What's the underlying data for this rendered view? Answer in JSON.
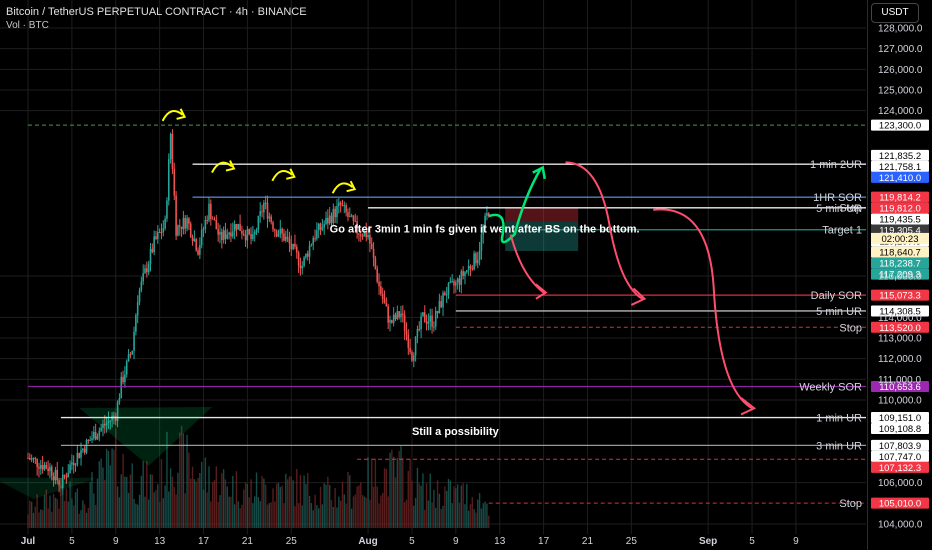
{
  "header": {
    "title": "Bitcoin / TetherUS PERPETUAL CONTRACT · 4h · BINANCE",
    "volume_label": "Vol · BTC",
    "currency": "USDT"
  },
  "chart_data": {
    "type": "candlestick",
    "ylim": [
      104000,
      128000
    ],
    "y_ticks": [
      {
        "v": 128000,
        "label": "128,000.0"
      },
      {
        "v": 127000,
        "label": "127,000.0"
      },
      {
        "v": 126000,
        "label": "126,000.0"
      },
      {
        "v": 125000,
        "label": "125,000.0"
      },
      {
        "v": 124000,
        "label": "124,000.0"
      },
      {
        "v": 116000,
        "label": "116,000.0"
      },
      {
        "v": 114000,
        "label": "114,000.0"
      },
      {
        "v": 113000,
        "label": "113,000.0"
      },
      {
        "v": 112000,
        "label": "112,000.0"
      },
      {
        "v": 111000,
        "label": "111,000.0"
      },
      {
        "v": 110000,
        "label": "110,000.0"
      },
      {
        "v": 106000,
        "label": "106,000.0"
      },
      {
        "v": 104000,
        "label": "104,000.0"
      }
    ],
    "x_ticks": [
      "Jul",
      "5",
      "9",
      "13",
      "17",
      "21",
      "25",
      "Aug",
      "5",
      "9",
      "13",
      "17",
      "21",
      "25",
      "Sep",
      "5",
      "9"
    ],
    "x_tick_days": [
      0,
      4,
      8,
      12,
      16,
      20,
      24,
      31,
      35,
      39,
      43,
      47,
      51,
      55,
      62,
      66,
      70
    ],
    "price_path": [
      [
        0,
        107200
      ],
      [
        2,
        106700
      ],
      [
        3,
        105900
      ],
      [
        4,
        107000
      ],
      [
        6,
        108300
      ],
      [
        8,
        109300
      ],
      [
        8.5,
        110800
      ],
      [
        9.5,
        112500
      ],
      [
        10,
        115000
      ],
      [
        11.5,
        117600
      ],
      [
        12.5,
        118500
      ],
      [
        13,
        122900
      ],
      [
        13.5,
        118300
      ],
      [
        14.5,
        118700
      ],
      [
        15.5,
        117300
      ],
      [
        16.5,
        119300
      ],
      [
        17.5,
        117800
      ],
      [
        19,
        118500
      ],
      [
        20.5,
        117700
      ],
      [
        21.5,
        119500
      ],
      [
        22.5,
        118300
      ],
      [
        23.5,
        117800
      ],
      [
        25,
        116500
      ],
      [
        26,
        117900
      ],
      [
        27,
        118500
      ],
      [
        28.5,
        119400
      ],
      [
        30,
        118200
      ],
      [
        31,
        118000
      ],
      [
        32,
        115500
      ],
      [
        33,
        113700
      ],
      [
        34,
        114200
      ],
      [
        35,
        112200
      ],
      [
        36,
        114000
      ],
      [
        37,
        113800
      ],
      [
        38,
        115200
      ],
      [
        39,
        115600
      ],
      [
        40,
        116300
      ],
      [
        41,
        117000
      ],
      [
        41.5,
        118300
      ],
      [
        42,
        119200
      ]
    ],
    "volume_path": [
      [
        0,
        0.2
      ],
      [
        3,
        0.35
      ],
      [
        5,
        0.3
      ],
      [
        8,
        0.7
      ],
      [
        10,
        0.5
      ],
      [
        12,
        0.45
      ],
      [
        13,
        0.8
      ],
      [
        16,
        0.55
      ],
      [
        20,
        0.4
      ],
      [
        24,
        0.45
      ],
      [
        28,
        0.35
      ],
      [
        32,
        0.55
      ],
      [
        34,
        0.6
      ],
      [
        36,
        0.4
      ],
      [
        40,
        0.35
      ],
      [
        42,
        0.25
      ]
    ],
    "horizontal_levels": [
      {
        "price": 123300,
        "color": "#4caf50",
        "style": "dashed",
        "label": "",
        "tag": "123,300.0"
      },
      {
        "price": 121835.2,
        "color": "#000000",
        "style": "none",
        "label": "",
        "tag": "121,835.2"
      },
      {
        "price": 121758.1,
        "color": "#000000",
        "style": "none",
        "label": "",
        "tag": "121,758.1"
      },
      {
        "price": 121410,
        "color": "#ffffff",
        "style": "solid",
        "label": "1 min 2UR",
        "tag": "121,410.0",
        "tag_bg": "#2962ff"
      },
      {
        "price": 119814.2,
        "color": "#5b8fd6",
        "style": "solid",
        "label": "1HR SOR",
        "tag": "119,814.2",
        "tag_bg": "#f23645"
      },
      {
        "price": 119812,
        "color": "#000000",
        "style": "none",
        "label": "",
        "tag": "119,812.0",
        "tag_bg": "#f23645"
      },
      {
        "price": 119435.5,
        "color": "#000000",
        "style": "none",
        "label": "",
        "tag": "119,435.5"
      },
      {
        "price": 119305.4,
        "color": "#787b86",
        "style": "solid",
        "label": "Stop",
        "tag": "119,305.4",
        "tag_bg": "#3a3a3a"
      },
      {
        "price": 119297.6,
        "color": "#ffffff",
        "style": "solid",
        "label": "5 min UR",
        "tag": "119,297.6"
      },
      {
        "price": 118640.7,
        "color": "#ffffff",
        "style": "none",
        "label": "",
        "tag": "118,640.7",
        "tag_bg": "#fff3c4"
      },
      {
        "price": 118238.7,
        "color": "#26a69a",
        "style": "solid",
        "label": "Target 1",
        "tag": "118,238.7",
        "tag_bg": "#26a69a"
      },
      {
        "price": 117209.3,
        "color": "#000000",
        "style": "none",
        "label": "",
        "tag": "117,209.3",
        "tag_bg": "#26a69a"
      },
      {
        "price": 115073.3,
        "color": "#f23645",
        "style": "solid",
        "label": "Daily SOR",
        "tag": "115,073.3",
        "tag_bg": "#f23645"
      },
      {
        "price": 114308.5,
        "color": "#cccccc",
        "style": "solid",
        "label": "5 min UR",
        "tag": "114,308.5"
      },
      {
        "price": 113520,
        "color": "#f23645",
        "style": "dashed",
        "label": "Stop",
        "tag": "113,520.0",
        "tag_bg": "#f23645"
      },
      {
        "price": 110653.6,
        "color": "#9c27b0",
        "style": "solid",
        "label": "Weekly SOR",
        "tag": "110,653.6",
        "tag_bg": "#9c27b0"
      },
      {
        "price": 109151,
        "color": "#ffffff",
        "style": "solid",
        "label": "1 min UR",
        "tag": "109,151.0"
      },
      {
        "price": 109108.8,
        "color": "#000000",
        "style": "none",
        "label": "",
        "tag": "109,108.8"
      },
      {
        "price": 107803.9,
        "color": "#aaaaaa",
        "style": "solid",
        "label": "3 min UR",
        "tag": "107,803.9"
      },
      {
        "price": 107747,
        "color": "#000000",
        "style": "none",
        "label": "",
        "tag": "107,747.0"
      },
      {
        "price": 107132.3,
        "color": "#f23645",
        "style": "dashed",
        "label": "",
        "tag": "107,132.3",
        "tag_bg": "#f23645"
      },
      {
        "price": 105010,
        "color": "#f23645",
        "style": "dashed",
        "label": "Stop",
        "tag": "105,010.0",
        "tag_bg": "#f23645"
      }
    ],
    "countdown": "02:00:23",
    "annotations": [
      {
        "text": "Go after 3min 1 min fs given it went after BS on the bottom.",
        "day": 27.5,
        "price": 118300
      },
      {
        "text": "Still a possibility",
        "day": 35,
        "price": 108500
      }
    ]
  },
  "colors": {
    "up": "#26a69a",
    "down": "#ef5350",
    "bg": "#000000",
    "grid": "#1e1e1e",
    "text": "#d1d4dc"
  },
  "drawings": {
    "yellow_arrows": "yellow",
    "green_triangles": "#00e676",
    "green_arrow": "#00e676",
    "red_arrows": "#ff4d6d"
  }
}
